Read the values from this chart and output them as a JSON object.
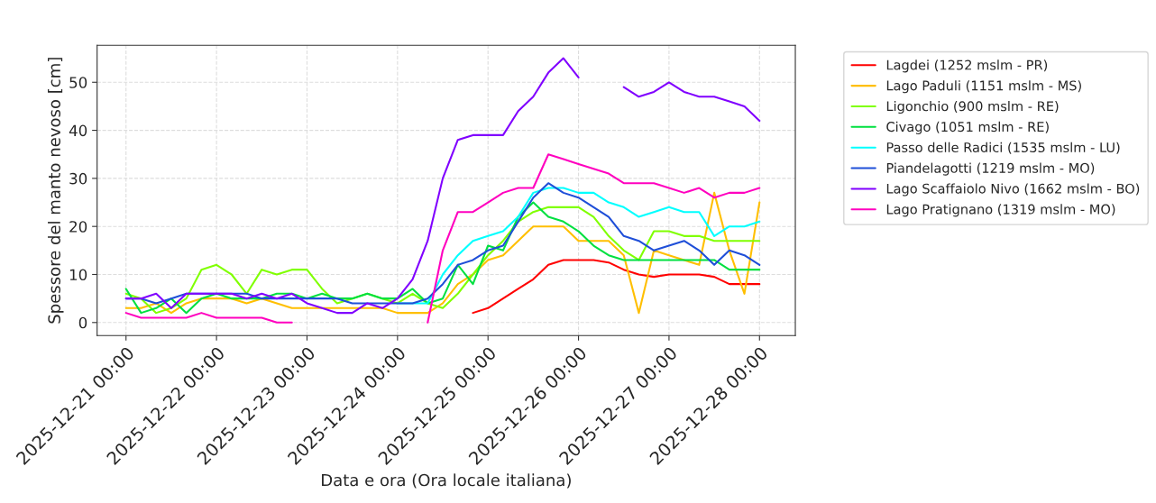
{
  "chart_data": {
    "type": "line",
    "xlabel": "Data e ora (Ora locale italiana)",
    "ylabel": "Spessore del manto nevoso [cm]",
    "x": [
      "2025-12-21T00:00",
      "2025-12-21T04:00",
      "2025-12-21T08:00",
      "2025-12-21T12:00",
      "2025-12-21T16:00",
      "2025-12-21T20:00",
      "2025-12-22T00:00",
      "2025-12-22T04:00",
      "2025-12-22T08:00",
      "2025-12-22T12:00",
      "2025-12-22T16:00",
      "2025-12-22T20:00",
      "2025-12-23T00:00",
      "2025-12-23T04:00",
      "2025-12-23T08:00",
      "2025-12-23T12:00",
      "2025-12-23T16:00",
      "2025-12-23T20:00",
      "2025-12-24T00:00",
      "2025-12-24T04:00",
      "2025-12-24T08:00",
      "2025-12-24T12:00",
      "2025-12-24T16:00",
      "2025-12-24T20:00",
      "2025-12-25T00:00",
      "2025-12-25T04:00",
      "2025-12-25T08:00",
      "2025-12-25T12:00",
      "2025-12-25T16:00",
      "2025-12-25T20:00",
      "2025-12-26T00:00",
      "2025-12-26T04:00",
      "2025-12-26T08:00",
      "2025-12-26T12:00",
      "2025-12-26T16:00",
      "2025-12-26T20:00",
      "2025-12-27T00:00",
      "2025-12-27T04:00",
      "2025-12-27T08:00",
      "2025-12-27T12:00",
      "2025-12-27T16:00",
      "2025-12-27T20:00",
      "2025-12-28T00:00"
    ],
    "series": [
      {
        "name": "Lagdei (1252 mslm - PR)",
        "color": "#ff0000",
        "values": [
          null,
          null,
          null,
          null,
          null,
          null,
          null,
          null,
          null,
          null,
          null,
          null,
          null,
          null,
          null,
          null,
          null,
          null,
          null,
          null,
          null,
          null,
          null,
          2,
          3,
          5,
          7,
          9,
          12,
          13,
          13,
          13,
          12.5,
          11,
          10,
          9.5,
          10,
          10,
          10,
          9.5,
          8,
          8,
          8
        ]
      },
      {
        "name": "Lago Paduli (1151 mslm - MS)",
        "color": "#ffbf00",
        "values": [
          3,
          3,
          4,
          2,
          4,
          5,
          5,
          5,
          4,
          5,
          4,
          3,
          3,
          3,
          3,
          3,
          3,
          3,
          2,
          2,
          2,
          4,
          8,
          10,
          13,
          14,
          17,
          20,
          20,
          20,
          17,
          17,
          17,
          14,
          2,
          15,
          14,
          13,
          12,
          27,
          15,
          6,
          25
        ]
      },
      {
        "name": "Ligonchio (900 mslm - RE)",
        "color": "#80ff00",
        "values": [
          6,
          5,
          2,
          3,
          5,
          11,
          12,
          10,
          6,
          11,
          10,
          11,
          11,
          7,
          4,
          5,
          6,
          5,
          4,
          6,
          4,
          3,
          6,
          10,
          14,
          17,
          21,
          23,
          24,
          24,
          24,
          22,
          18,
          15,
          13,
          19,
          19,
          18,
          18,
          17,
          17,
          17,
          17
        ]
      },
      {
        "name": "Civago (1051 mslm - RE)",
        "color": "#00e040",
        "values": [
          7,
          2,
          3,
          5,
          2,
          5,
          6,
          5,
          5,
          5,
          6,
          6,
          5,
          6,
          5,
          5,
          6,
          5,
          5,
          7,
          4,
          5,
          12,
          8,
          16,
          15,
          22,
          25,
          22,
          21,
          19,
          16,
          14,
          13,
          13,
          13,
          13,
          13,
          13,
          13,
          11,
          11,
          11
        ]
      },
      {
        "name": "Passo delle Radici (1535 mslm - LU)",
        "color": "#00ffff",
        "values": [
          null,
          null,
          null,
          null,
          null,
          null,
          null,
          null,
          null,
          null,
          null,
          null,
          null,
          null,
          null,
          null,
          null,
          null,
          4,
          4,
          4,
          10,
          14,
          17,
          18,
          19,
          22,
          27,
          28,
          28,
          27,
          27,
          25,
          24,
          22,
          23,
          24,
          23,
          23,
          18,
          20,
          20,
          21
        ]
      },
      {
        "name": "Piandelagotti (1219 mslm - MO)",
        "color": "#1f4fd8",
        "values": [
          5,
          5,
          4,
          5,
          6,
          6,
          6,
          6,
          6,
          5,
          5,
          5,
          5,
          5,
          5,
          4,
          4,
          4,
          4,
          4,
          5,
          8,
          12,
          13,
          15,
          16,
          21,
          26,
          29,
          27,
          26,
          24,
          22,
          18,
          17,
          15,
          16,
          17,
          15,
          12,
          15,
          14,
          12
        ]
      },
      {
        "name": "Lago Scaffaiolo Nivo (1662 mslm - BO)",
        "color": "#8000ff",
        "values": [
          5,
          5,
          6,
          3,
          6,
          6,
          6,
          6,
          5,
          6,
          5,
          6,
          4,
          3,
          2,
          2,
          4,
          3,
          5,
          9,
          17,
          30,
          38,
          39,
          39,
          39,
          44,
          47,
          52,
          55,
          51,
          null,
          null,
          49,
          47,
          48,
          50,
          48,
          47,
          47,
          46,
          45,
          42
        ]
      },
      {
        "name": "Lago Pratignano (1319 mslm - MO)",
        "color": "#ff00bf",
        "values": [
          2,
          1,
          1,
          1,
          1,
          2,
          1,
          1,
          1,
          1,
          0,
          0,
          null,
          null,
          null,
          null,
          null,
          null,
          null,
          null,
          0,
          15,
          23,
          23,
          25,
          27,
          28,
          28,
          35,
          34,
          33,
          32,
          31,
          29,
          29,
          29,
          28,
          27,
          28,
          26,
          27,
          27,
          28
        ]
      }
    ],
    "xlim": [
      "2025-12-20T16:20",
      "2025-12-28T09:30"
    ],
    "xticks": [
      {
        "value": "2025-12-21",
        "label": "2025-12-21 00:00"
      },
      {
        "value": "2025-12-22",
        "label": "2025-12-22 00:00"
      },
      {
        "value": "2025-12-23",
        "label": "2025-12-23 00:00"
      },
      {
        "value": "2025-12-24",
        "label": "2025-12-24 00:00"
      },
      {
        "value": "2025-12-25",
        "label": "2025-12-25 00:00"
      },
      {
        "value": "2025-12-26",
        "label": "2025-12-26 00:00"
      },
      {
        "value": "2025-12-27",
        "label": "2025-12-27 00:00"
      },
      {
        "value": "2025-12-28",
        "label": "2025-12-28 00:00"
      }
    ],
    "ylim": [
      -2.7,
      57.7
    ],
    "yticks": [
      0,
      10,
      20,
      30,
      40,
      50
    ],
    "grid": true,
    "legend": "top right",
    "line_style": "solid",
    "marker": "none"
  }
}
